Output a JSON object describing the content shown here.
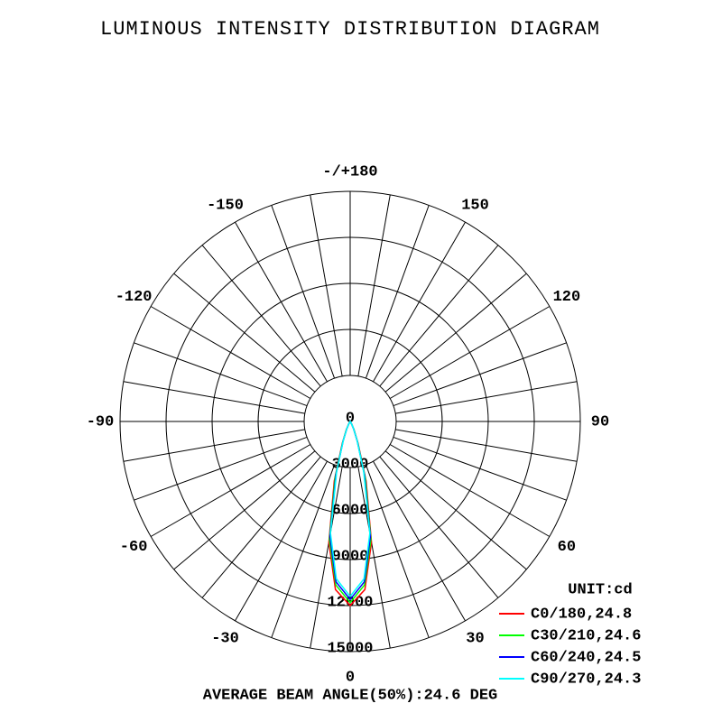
{
  "chart_data": {
    "type": "polar",
    "title": "LUMINOUS INTENSITY DISTRIBUTION DIAGRAM",
    "rlim": [
      0,
      15000
    ],
    "rticks": [
      0,
      3000,
      6000,
      9000,
      12000,
      15000
    ],
    "angle_ticks": [
      -150,
      -120,
      -90,
      -60,
      -30,
      0,
      30,
      60,
      90,
      120,
      150,
      {
        "value": 180,
        "label": "-/+180"
      }
    ],
    "angular_grid_step": 10,
    "unit_label": "UNIT:cd",
    "angles": [
      -30,
      -25,
      -20,
      -15,
      -10,
      -5,
      0,
      5,
      10,
      15,
      20,
      25,
      30
    ],
    "series": [
      {
        "name": "C0/180,24.8",
        "color": "#ff0000",
        "values": [
          200,
          600,
          1500,
          4000,
          8000,
          11000,
          12000,
          11000,
          8000,
          4000,
          1500,
          600,
          200
        ]
      },
      {
        "name": "C30/210,24.6",
        "color": "#00ff00",
        "values": [
          180,
          550,
          1400,
          3800,
          7800,
          10700,
          11800,
          10700,
          7800,
          3800,
          1400,
          550,
          180
        ]
      },
      {
        "name": "C60/240,24.5",
        "color": "#0000ff",
        "values": [
          170,
          520,
          1350,
          3600,
          7600,
          10500,
          11600,
          10500,
          7600,
          3600,
          1350,
          520,
          170
        ]
      },
      {
        "name": "C90/270,24.3",
        "color": "#00ffff",
        "values": [
          150,
          500,
          1300,
          3400,
          7400,
          10300,
          11400,
          10300,
          7400,
          3400,
          1300,
          500,
          150
        ]
      }
    ],
    "footer": "AVERAGE BEAM ANGLE(50%):24.6 DEG"
  }
}
